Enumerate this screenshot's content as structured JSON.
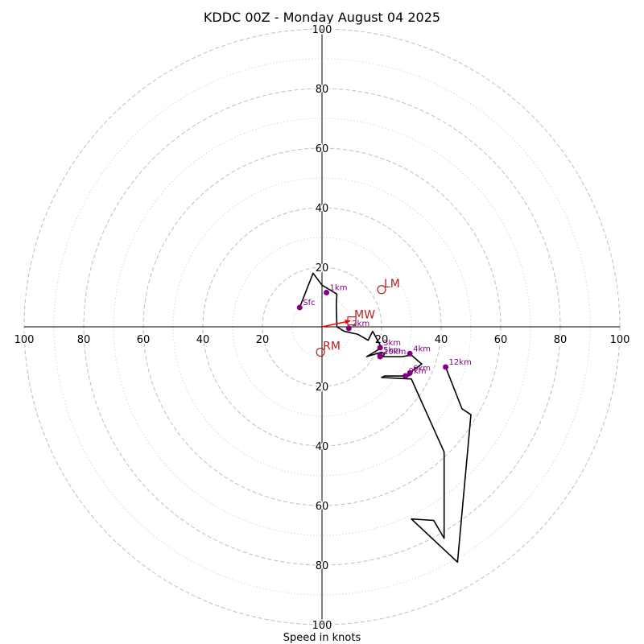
{
  "chart_data": {
    "type": "hodograph",
    "title": "KDDC 00Z - Monday August 04 2025",
    "xlabel": "Speed in knots",
    "units": "knots",
    "range": 100,
    "ring_step_major": 20,
    "ring_step_minor": 10,
    "axis_ticks": {
      "x": [
        "100",
        "80",
        "60",
        "40",
        "20",
        "20",
        "40",
        "60",
        "80",
        "100"
      ],
      "y": [
        "100",
        "80",
        "60",
        "40",
        "20",
        "20",
        "40",
        "60",
        "80",
        "100"
      ]
    },
    "trace": [
      [
        -7.5,
        6.5
      ],
      [
        -3,
        18
      ],
      [
        0,
        14
      ],
      [
        5,
        11
      ],
      [
        4.8,
        7.5
      ],
      [
        5,
        0
      ],
      [
        7.5,
        -1.5
      ],
      [
        12,
        -2.5
      ],
      [
        15.5,
        -4.5
      ],
      [
        17,
        -1.5
      ],
      [
        20,
        -7
      ],
      [
        15,
        -10
      ],
      [
        20,
        -8.5
      ],
      [
        21,
        -9
      ],
      [
        20.5,
        -10
      ],
      [
        27,
        -10
      ],
      [
        30,
        -9.5
      ],
      [
        33.5,
        -12.5
      ],
      [
        30,
        -15
      ],
      [
        29,
        -16.5
      ],
      [
        30,
        -16
      ],
      [
        27,
        -16.5
      ],
      [
        21,
        -16.5
      ],
      [
        20,
        -17
      ],
      [
        30,
        -17.5
      ],
      [
        41,
        -42
      ],
      [
        41,
        -71
      ],
      [
        37.5,
        -65
      ],
      [
        30,
        -64.5
      ],
      [
        45.5,
        -79
      ],
      [
        50,
        -29.5
      ],
      [
        47,
        -27.5
      ],
      [
        41.5,
        -13.5
      ]
    ],
    "height_markers": [
      {
        "label": "Sfc",
        "u": -7.5,
        "v": 6.5
      },
      {
        "label": "1km",
        "u": 1.5,
        "v": 11.5
      },
      {
        "label": "2km",
        "u": 9,
        "v": -0.5
      },
      {
        "label": "3km",
        "u": 19.5,
        "v": -7
      },
      {
        "label": "4km",
        "u": 29.5,
        "v": -9
      },
      {
        "label": "5km",
        "u": 19.5,
        "v": -9.5
      },
      {
        "label": "6km",
        "u": 29.5,
        "v": -15.5
      },
      {
        "label": "9km",
        "u": 28,
        "v": -16.5
      },
      {
        "label": "10km",
        "u": 19.5,
        "v": -10
      },
      {
        "label": "12km",
        "u": 41.5,
        "v": -13.5
      }
    ],
    "storm_motion": [
      {
        "label": "LM",
        "u": 20,
        "v": 12.5,
        "marker": "circle"
      },
      {
        "label": "MW",
        "u": 10,
        "v": 2,
        "marker": "square"
      },
      {
        "label": "RM",
        "u": -0.5,
        "v": -8.5,
        "marker": "circle"
      }
    ],
    "shear_vector": {
      "from": [
        0,
        0
      ],
      "to": [
        9.5,
        2
      ]
    },
    "colors": {
      "ring_major": "#bfbfbf",
      "ring_minor": "#d9d9d9",
      "trace": "#000000",
      "height_marker": "#800080",
      "storm_motion": "#b22222",
      "shear_vector": "#ff0000"
    }
  }
}
